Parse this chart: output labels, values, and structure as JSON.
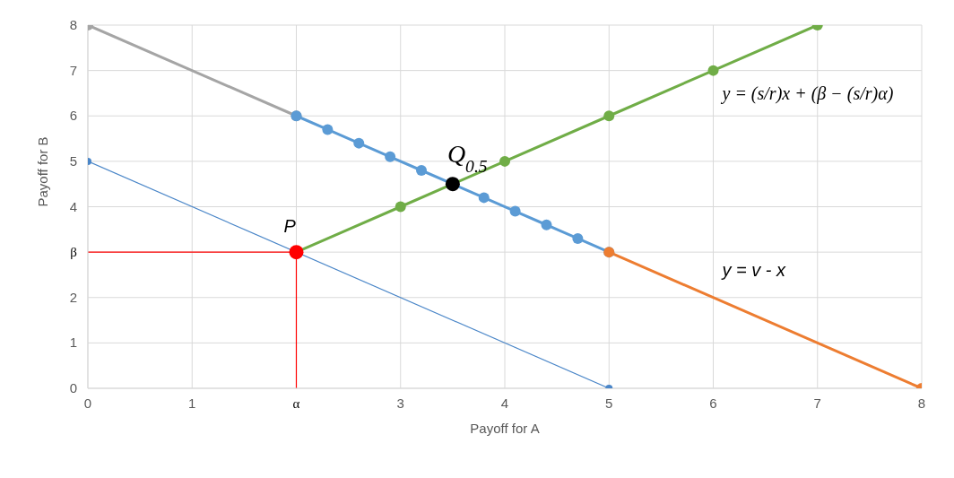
{
  "chart_data": {
    "type": "line",
    "xlabel": "Payoff for A",
    "ylabel": "Payoff for B",
    "xlim": [
      0,
      8
    ],
    "ylim": [
      0,
      8
    ],
    "xticks": [
      0,
      1,
      {
        "value": 2,
        "label": "α"
      },
      3,
      4,
      5,
      6,
      7,
      8
    ],
    "yticks": [
      0,
      1,
      2,
      {
        "value": 3,
        "label": "β"
      },
      4,
      5,
      6,
      7,
      8
    ],
    "grid": true,
    "legend": false,
    "marker": "circle",
    "series": [
      {
        "color": "#a5a5a5",
        "x": [
          0,
          2
        ],
        "values": [
          8,
          6
        ]
      },
      {
        "color": "#5b9bd5",
        "x": [
          2,
          2.3,
          2.6,
          2.9,
          3.2,
          3.8,
          4.1,
          4.4,
          4.7,
          5
        ],
        "values": [
          6,
          5.7,
          5.4,
          5.1,
          4.8,
          4.2,
          3.9,
          3.6,
          3.3,
          3
        ]
      },
      {
        "color": "#ed7d31",
        "x": [
          5,
          8
        ],
        "values": [
          3,
          0
        ]
      },
      {
        "color": "#70ad47",
        "x": [
          2,
          3,
          4,
          5,
          6,
          7
        ],
        "values": [
          3,
          4,
          5,
          6,
          7,
          8
        ]
      },
      {
        "color": "#4a86c8",
        "x": [
          0,
          5
        ],
        "values": [
          5,
          0
        ]
      },
      {
        "color": "#ff0000",
        "x": [
          0,
          2,
          2
        ],
        "values": [
          3,
          3,
          0
        ],
        "marker": "none"
      },
      {
        "type": "scatter",
        "color": "#ff0000",
        "x": [
          2
        ],
        "values": [
          3
        ]
      },
      {
        "type": "scatter",
        "color": "#000000",
        "x": [
          3.5
        ],
        "values": [
          4.5
        ]
      }
    ],
    "annotations": [
      {
        "text": "P",
        "x": 2,
        "y": 3
      },
      {
        "text": "Q$_{0.5}$",
        "x": 3.5,
        "y": 4.5
      },
      {
        "text": "y = (s/r)x + (β − (s/r)α)",
        "x": 6,
        "y": 7
      },
      {
        "text": "y = v - x",
        "x": 6,
        "y": 2
      }
    ]
  }
}
